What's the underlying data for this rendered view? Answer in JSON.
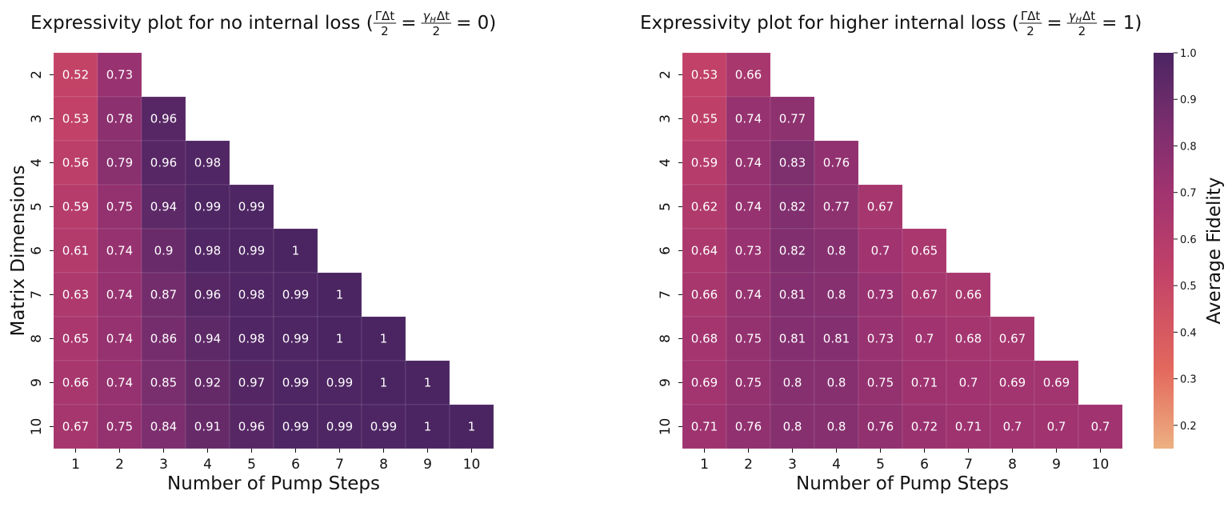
{
  "chart_data": [
    {
      "type": "heatmap",
      "title": "Expressivity plot for no internal loss (ΓΔt/2 = γHΔt/2 = 0)",
      "title_parts": {
        "prefix": "Expressivity plot for no internal loss (",
        "frac1_num": "ΓΔt",
        "frac1_den": "2",
        "eq1": "=",
        "frac2_num_sym": "γ",
        "frac2_num_sub": "H",
        "frac2_num_rest": "Δt",
        "frac2_den": "2",
        "suffix": "= 0)"
      },
      "xlabel": "Number of Pump Steps",
      "ylabel": "Matrix Dimensions",
      "x_categories": [
        "1",
        "2",
        "3",
        "4",
        "5",
        "6",
        "7",
        "8",
        "9",
        "10"
      ],
      "y_categories": [
        "2",
        "3",
        "4",
        "5",
        "6",
        "7",
        "8",
        "9",
        "10"
      ],
      "values": [
        [
          0.52,
          0.73
        ],
        [
          0.53,
          0.78,
          0.96
        ],
        [
          0.56,
          0.79,
          0.96,
          0.98
        ],
        [
          0.59,
          0.75,
          0.94,
          0.99,
          0.99
        ],
        [
          0.61,
          0.74,
          0.9,
          0.98,
          0.99,
          1
        ],
        [
          0.63,
          0.74,
          0.87,
          0.96,
          0.98,
          0.99,
          1
        ],
        [
          0.65,
          0.74,
          0.86,
          0.94,
          0.98,
          0.99,
          1,
          1
        ],
        [
          0.66,
          0.74,
          0.85,
          0.92,
          0.97,
          0.99,
          0.99,
          1,
          1
        ],
        [
          0.67,
          0.75,
          0.84,
          0.91,
          0.96,
          0.99,
          0.99,
          0.99,
          1,
          1
        ]
      ],
      "colormap": "flare",
      "vmin": 0.15,
      "vmax": 1.0
    },
    {
      "type": "heatmap",
      "title": "Expressivity plot for higher internal loss (ΓΔt/2 = γHΔt/2 = 1)",
      "title_parts": {
        "prefix": "Expressivity plot for higher internal loss (",
        "frac1_num": "ΓΔt",
        "frac1_den": "2",
        "eq1": "=",
        "frac2_num_sym": "γ",
        "frac2_num_sub": "H",
        "frac2_num_rest": "Δt",
        "frac2_den": "2",
        "suffix": "= 1)"
      },
      "xlabel": "Number of Pump Steps",
      "ylabel": "",
      "x_categories": [
        "1",
        "2",
        "3",
        "4",
        "5",
        "6",
        "7",
        "8",
        "9",
        "10"
      ],
      "y_categories": [
        "2",
        "3",
        "4",
        "5",
        "6",
        "7",
        "8",
        "9",
        "10"
      ],
      "values": [
        [
          0.53,
          0.66
        ],
        [
          0.55,
          0.74,
          0.77
        ],
        [
          0.59,
          0.74,
          0.83,
          0.76
        ],
        [
          0.62,
          0.74,
          0.82,
          0.77,
          0.67
        ],
        [
          0.64,
          0.73,
          0.82,
          0.8,
          0.7,
          0.65
        ],
        [
          0.66,
          0.74,
          0.81,
          0.8,
          0.73,
          0.67,
          0.66
        ],
        [
          0.68,
          0.75,
          0.81,
          0.81,
          0.73,
          0.7,
          0.68,
          0.67
        ],
        [
          0.69,
          0.75,
          0.8,
          0.8,
          0.75,
          0.71,
          0.7,
          0.69,
          0.69
        ],
        [
          0.71,
          0.76,
          0.8,
          0.8,
          0.76,
          0.72,
          0.71,
          0.7,
          0.7,
          0.7
        ]
      ],
      "colormap": "flare",
      "vmin": 0.15,
      "vmax": 1.0
    }
  ],
  "colorbar": {
    "label": "Average Fidelity",
    "ticks": [
      "0.2",
      "0.3",
      "0.4",
      "0.5",
      "0.6",
      "0.7",
      "0.8",
      "0.9",
      "1.0"
    ],
    "range": [
      0.15,
      1.0
    ],
    "colors": {
      "low": "#edb081",
      "mid1": "#e3685d",
      "mid2": "#c14168",
      "mid3": "#a03370",
      "mid4": "#7a2e6e",
      "high": "#4b2562"
    }
  }
}
